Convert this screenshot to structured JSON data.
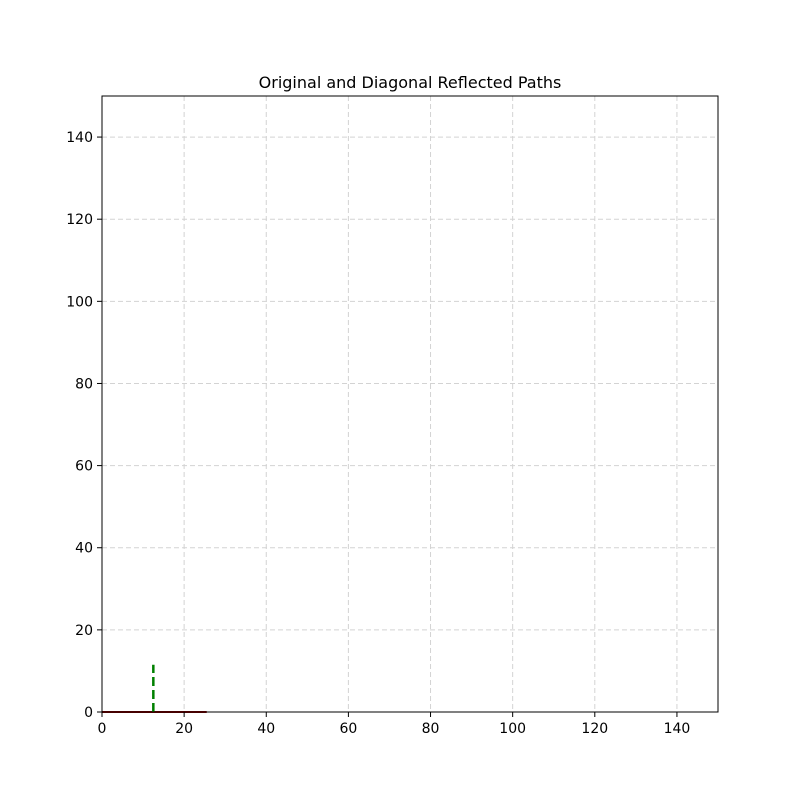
{
  "chart_data": {
    "type": "line",
    "title": "Original and Diagonal Reflected Paths",
    "xlabel": "",
    "ylabel": "",
    "xlim": [
      0,
      150
    ],
    "ylim": [
      0,
      150
    ],
    "xticks": [
      0,
      20,
      40,
      60,
      80,
      100,
      120,
      140
    ],
    "yticks": [
      0,
      20,
      40,
      60,
      80,
      100,
      120,
      140
    ],
    "grid": true,
    "grid_color": "#d3d3d3",
    "series": [
      {
        "color": "#8b0000",
        "style": "solid",
        "x": [
          0,
          25.5
        ],
        "y": [
          0,
          0
        ]
      },
      {
        "color": "#008000",
        "style": "dashed",
        "x": [
          12.5,
          12.5
        ],
        "y": [
          0,
          11.5
        ]
      }
    ]
  }
}
